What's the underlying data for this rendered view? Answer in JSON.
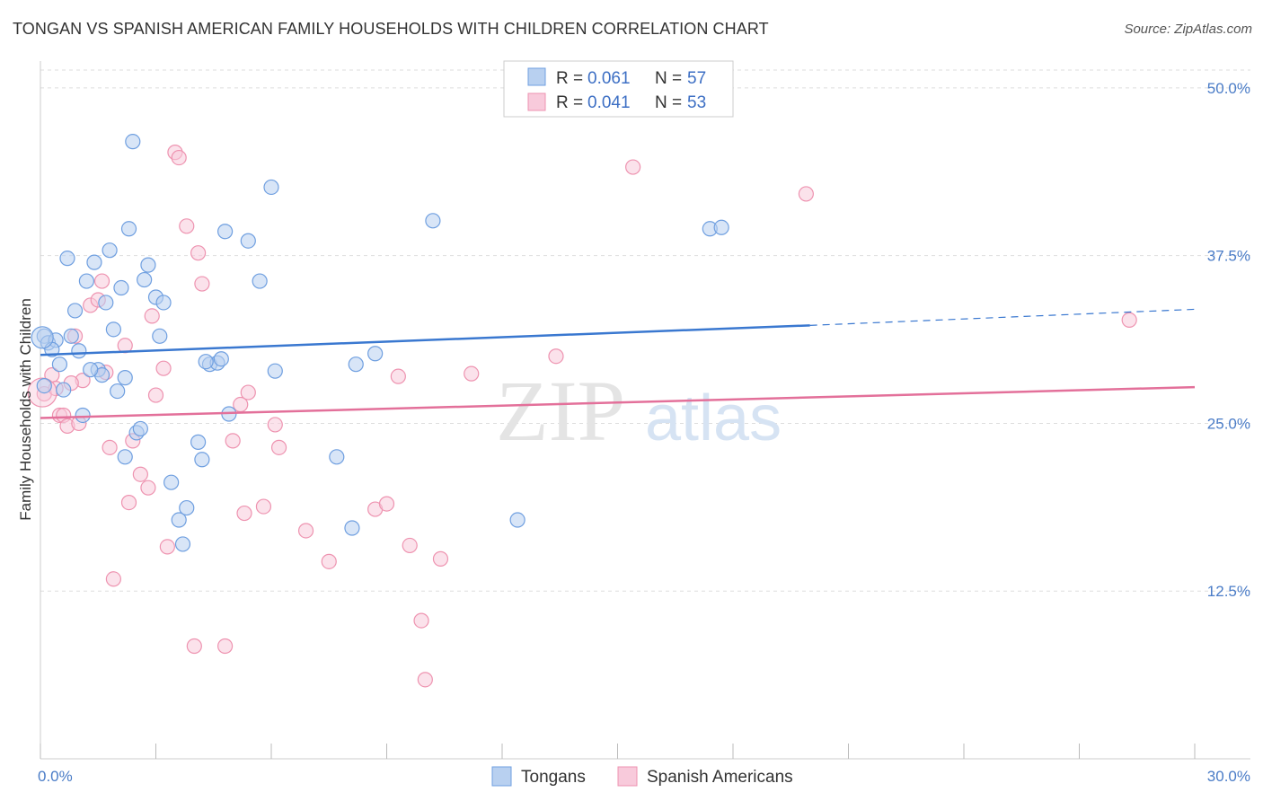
{
  "title": "TONGAN VS SPANISH AMERICAN FAMILY HOUSEHOLDS WITH CHILDREN CORRELATION CHART",
  "source": "Source: ZipAtlas.com",
  "watermark": {
    "zip": "ZIP",
    "atlas": "atlas"
  },
  "colors": {
    "tongan": "#6f9fe0",
    "tongan_fill": "#b8d0f0",
    "tongan_line": "#3a78d0",
    "spanish": "#ee93b0",
    "spanish_fill": "#f8cadb",
    "spanish_line": "#e3709a",
    "grid": "#dddddd",
    "tick_text": "#4a7cc7"
  },
  "legend": {
    "rows": [
      {
        "series": "Tongans",
        "r_label": "R =",
        "r_value": "0.061",
        "n_label": "N =",
        "n_value": "57"
      },
      {
        "series": "Spanish Americans",
        "r_label": "R =",
        "r_value": "0.041",
        "n_label": "N =",
        "n_value": "53"
      }
    ]
  },
  "chart_data": {
    "type": "scatter",
    "title": "TONGAN VS SPANISH AMERICAN FAMILY HOUSEHOLDS WITH CHILDREN CORRELATION CHART",
    "xlabel": "",
    "ylabel": "Family Households with Children",
    "xlim": [
      0,
      30
    ],
    "ylim": [
      0,
      52
    ],
    "x_tick_labels": [
      {
        "value": 0,
        "label": "0.0%"
      },
      {
        "value": 30,
        "label": "30.0%"
      }
    ],
    "y_tick_labels": [
      {
        "value": 12.5,
        "label": "12.5%"
      },
      {
        "value": 25.0,
        "label": "25.0%"
      },
      {
        "value": 37.5,
        "label": "37.5%"
      },
      {
        "value": 50.0,
        "label": "50.0%"
      }
    ],
    "grid": true,
    "legend_position": "top-center",
    "series": [
      {
        "name": "Tongans",
        "trend": {
          "x": [
            0,
            20.0
          ],
          "y": [
            30.1,
            32.3
          ],
          "dashed_to": [
            30,
            33.5
          ]
        },
        "points": [
          [
            0.1,
            31.5
          ],
          [
            0.2,
            31.0
          ],
          [
            0.4,
            31.2
          ],
          [
            0.5,
            29.4
          ],
          [
            0.6,
            27.5
          ],
          [
            0.7,
            37.3
          ],
          [
            0.9,
            33.4
          ],
          [
            1.0,
            30.4
          ],
          [
            1.1,
            25.6
          ],
          [
            1.2,
            35.6
          ],
          [
            1.4,
            37.0
          ],
          [
            1.5,
            29.0
          ],
          [
            1.6,
            28.6
          ],
          [
            1.7,
            34.0
          ],
          [
            1.8,
            37.9
          ],
          [
            1.9,
            32.0
          ],
          [
            2.0,
            27.4
          ],
          [
            2.1,
            35.1
          ],
          [
            2.2,
            28.4
          ],
          [
            2.3,
            39.5
          ],
          [
            2.4,
            46.0
          ],
          [
            2.5,
            24.3
          ],
          [
            2.6,
            24.6
          ],
          [
            2.7,
            35.7
          ],
          [
            2.8,
            36.8
          ],
          [
            3.0,
            34.4
          ],
          [
            3.1,
            31.5
          ],
          [
            3.2,
            34.0
          ],
          [
            3.4,
            20.6
          ],
          [
            3.6,
            17.8
          ],
          [
            3.7,
            16.0
          ],
          [
            3.8,
            18.7
          ],
          [
            4.1,
            23.6
          ],
          [
            4.2,
            22.3
          ],
          [
            4.4,
            29.4
          ],
          [
            4.6,
            29.5
          ],
          [
            4.7,
            29.8
          ],
          [
            4.8,
            39.3
          ],
          [
            4.9,
            25.7
          ],
          [
            5.4,
            38.6
          ],
          [
            5.7,
            35.6
          ],
          [
            6.0,
            42.6
          ],
          [
            6.1,
            28.9
          ],
          [
            7.7,
            22.5
          ],
          [
            8.1,
            17.2
          ],
          [
            8.2,
            29.4
          ],
          [
            8.7,
            30.2
          ],
          [
            10.2,
            40.1
          ],
          [
            12.4,
            17.8
          ],
          [
            17.4,
            39.5
          ],
          [
            17.7,
            39.6
          ],
          [
            0.3,
            30.5
          ],
          [
            1.3,
            29.0
          ],
          [
            0.8,
            31.5
          ],
          [
            2.2,
            22.5
          ],
          [
            0.1,
            27.8
          ],
          [
            4.3,
            29.6
          ]
        ]
      },
      {
        "name": "Spanish Americans",
        "trend": {
          "x": [
            0,
            30
          ],
          "y": [
            25.4,
            27.7
          ]
        },
        "points": [
          [
            0.1,
            27.2
          ],
          [
            0.3,
            28.6
          ],
          [
            0.4,
            27.6
          ],
          [
            0.5,
            25.6
          ],
          [
            0.6,
            25.6
          ],
          [
            0.7,
            24.8
          ],
          [
            0.9,
            31.5
          ],
          [
            1.0,
            25.0
          ],
          [
            1.1,
            28.2
          ],
          [
            1.3,
            33.8
          ],
          [
            1.5,
            34.2
          ],
          [
            1.6,
            35.6
          ],
          [
            1.7,
            28.8
          ],
          [
            1.8,
            23.2
          ],
          [
            1.9,
            13.4
          ],
          [
            2.2,
            30.8
          ],
          [
            2.3,
            19.1
          ],
          [
            2.4,
            23.7
          ],
          [
            2.6,
            21.2
          ],
          [
            2.8,
            20.2
          ],
          [
            2.9,
            33.0
          ],
          [
            3.0,
            27.1
          ],
          [
            3.2,
            29.1
          ],
          [
            3.3,
            15.8
          ],
          [
            3.5,
            45.2
          ],
          [
            3.6,
            44.8
          ],
          [
            3.8,
            39.7
          ],
          [
            4.0,
            8.4
          ],
          [
            4.1,
            37.7
          ],
          [
            4.2,
            35.4
          ],
          [
            4.8,
            8.4
          ],
          [
            5.0,
            23.7
          ],
          [
            5.2,
            26.4
          ],
          [
            5.4,
            27.3
          ],
          [
            5.3,
            18.3
          ],
          [
            5.8,
            18.8
          ],
          [
            6.1,
            24.9
          ],
          [
            6.2,
            23.2
          ],
          [
            6.9,
            17.0
          ],
          [
            7.5,
            14.7
          ],
          [
            8.7,
            18.6
          ],
          [
            9.0,
            19.0
          ],
          [
            9.3,
            28.5
          ],
          [
            9.6,
            15.9
          ],
          [
            9.9,
            10.3
          ],
          [
            10.0,
            5.9
          ],
          [
            10.4,
            14.9
          ],
          [
            11.2,
            28.7
          ],
          [
            13.4,
            30.0
          ],
          [
            15.4,
            44.1
          ],
          [
            19.9,
            42.1
          ],
          [
            28.3,
            32.7
          ],
          [
            0.8,
            28.0
          ]
        ]
      }
    ]
  },
  "bottom_legend": {
    "tongans": "Tongans",
    "spanish": "Spanish Americans"
  }
}
